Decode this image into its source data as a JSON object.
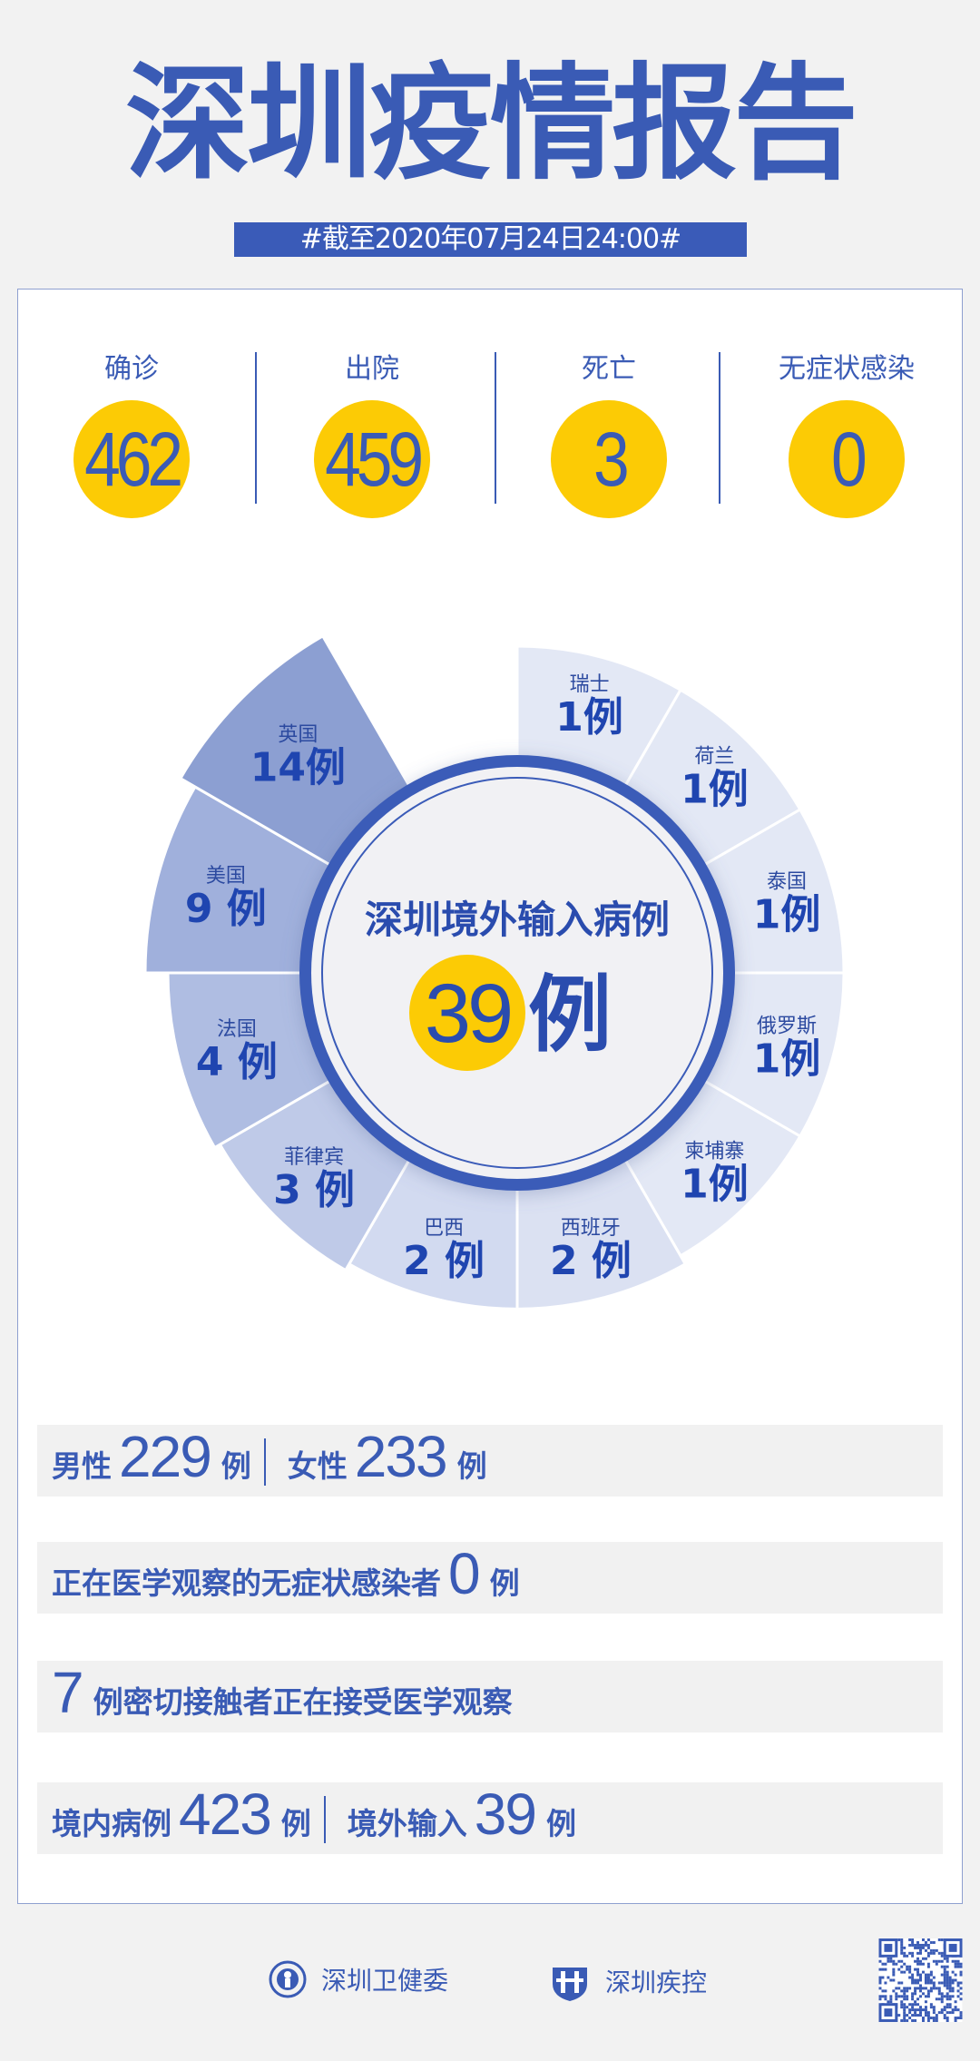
{
  "header": {
    "title": "深圳疫情报告",
    "date": "#截至2020年07月24日24:00#"
  },
  "stats": [
    {
      "label": "确诊",
      "value": "462"
    },
    {
      "label": "出院",
      "value": "459"
    },
    {
      "label": "死亡",
      "value": "3"
    },
    {
      "label": "无症状感染",
      "value": "0"
    }
  ],
  "chart_data": {
    "type": "pie",
    "subtype": "radial-sector",
    "title": "深圳境外输入病例",
    "total": "39",
    "total_unit": "例",
    "unit": "例",
    "categories": [
      "瑞士",
      "荷兰",
      "泰国",
      "俄罗斯",
      "柬埔寨",
      "西班牙",
      "巴西",
      "菲律宾",
      "法国",
      "美国",
      "英国"
    ],
    "values": [
      1,
      1,
      1,
      1,
      1,
      2,
      2,
      3,
      4,
      9,
      14
    ],
    "colors": [
      "#e3e8f5",
      "#e3e8f5",
      "#e3e8f5",
      "#e3e8f5",
      "#e3e8f5",
      "#dbe1f2",
      "#d2daf0",
      "#bfcae8",
      "#afbde2",
      "#a0b0dc",
      "#8c9fd2"
    ]
  },
  "rows": {
    "gender": {
      "male_label": "男性",
      "male": "229",
      "female_label": "女性",
      "female": "233",
      "unit": "例"
    },
    "asymptomatic": {
      "label": "正在医学观察的无症状感染者",
      "value": "0",
      "unit": "例"
    },
    "contacts": {
      "value": "7",
      "label": "例密切接触者正在接受医学观察"
    },
    "origin": {
      "local_label": "境内病例",
      "local": "423",
      "imported_label": "境外输入",
      "imported": "39",
      "unit": "例"
    }
  },
  "footer": {
    "org1": "深圳卫健委",
    "org2": "深圳疾控"
  }
}
